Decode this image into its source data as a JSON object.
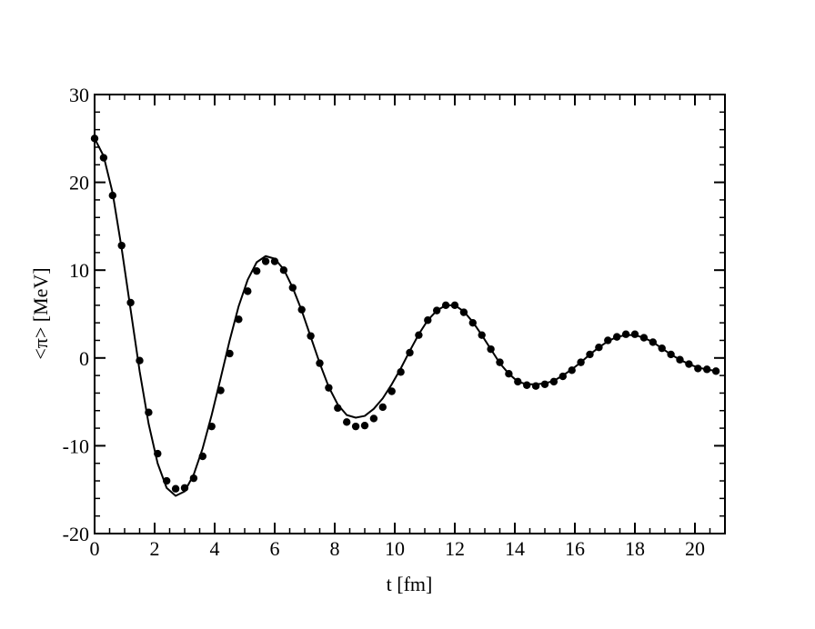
{
  "chart_data": {
    "type": "line",
    "xlabel": "t [fm]",
    "ylabel": "<π> [MeV]",
    "xlim": [
      0,
      21
    ],
    "ylim": [
      -20,
      30
    ],
    "xticks": [
      0,
      2,
      4,
      6,
      8,
      10,
      12,
      14,
      16,
      18,
      20
    ],
    "yticks": [
      -20,
      -10,
      0,
      10,
      20,
      30
    ],
    "x": [
      0,
      0.3,
      0.6,
      0.9,
      1.2,
      1.5,
      1.8,
      2.1,
      2.4,
      2.7,
      3.0,
      3.3,
      3.6,
      3.9,
      4.2,
      4.5,
      4.8,
      5.1,
      5.4,
      5.7,
      6.0,
      6.3,
      6.6,
      6.9,
      7.2,
      7.5,
      7.8,
      8.1,
      8.4,
      8.7,
      9.0,
      9.3,
      9.6,
      9.9,
      10.2,
      10.5,
      10.8,
      11.1,
      11.4,
      11.7,
      12.0,
      12.3,
      12.6,
      12.9,
      13.2,
      13.5,
      13.8,
      14.1,
      14.4,
      14.7,
      15.0,
      15.3,
      15.6,
      15.9,
      16.2,
      16.5,
      16.8,
      17.1,
      17.4,
      17.7,
      18.0,
      18.3,
      18.6,
      18.9,
      19.2,
      19.5,
      19.8,
      20.1,
      20.4,
      20.7
    ],
    "series": [
      {
        "style": "markers",
        "color": "#000000",
        "values": [
          25,
          22.8,
          18.5,
          12.8,
          6.3,
          -0.3,
          -6.2,
          -10.9,
          -14.0,
          -14.9,
          -14.8,
          -13.7,
          -11.2,
          -7.8,
          -3.7,
          0.5,
          4.4,
          7.6,
          9.9,
          11.0,
          11.0,
          10.0,
          8.0,
          5.5,
          2.5,
          -0.6,
          -3.4,
          -5.7,
          -7.3,
          -7.8,
          -7.7,
          -6.9,
          -5.6,
          -3.8,
          -1.6,
          0.6,
          2.6,
          4.3,
          5.4,
          6.0,
          6.0,
          5.2,
          4.0,
          2.6,
          1.0,
          -0.5,
          -1.8,
          -2.7,
          -3.1,
          -3.2,
          -3.0,
          -2.7,
          -2.1,
          -1.4,
          -0.5,
          0.4,
          1.2,
          2.0,
          2.4,
          2.7,
          2.7,
          2.3,
          1.8,
          1.1,
          0.4,
          -0.2,
          -0.7,
          -1.2,
          -1.3,
          -1.5
        ]
      },
      {
        "style": "line",
        "color": "#000000",
        "values": [
          25,
          23,
          18.8,
          12.5,
          5.5,
          -1.5,
          -7.5,
          -12.0,
          -14.8,
          -15.7,
          -15.2,
          -13.3,
          -10.3,
          -6.5,
          -2.3,
          2.0,
          5.9,
          8.9,
          10.9,
          11.6,
          11.3,
          10.1,
          8.0,
          5.4,
          2.4,
          -0.6,
          -3.3,
          -5.3,
          -6.5,
          -6.8,
          -6.6,
          -5.8,
          -4.6,
          -3.0,
          -1.2,
          0.8,
          2.7,
          4.3,
          5.4,
          6.0,
          6.0,
          5.3,
          4.1,
          2.6,
          1.0,
          -0.6,
          -1.8,
          -2.7,
          -3.0,
          -3.0,
          -2.9,
          -2.6,
          -2.0,
          -1.3,
          -0.5,
          0.4,
          1.2,
          1.9,
          2.4,
          2.6,
          2.6,
          2.3,
          1.8,
          1.1,
          0.4,
          -0.2,
          -0.7,
          -1.1,
          -1.3,
          -1.5
        ]
      }
    ]
  }
}
